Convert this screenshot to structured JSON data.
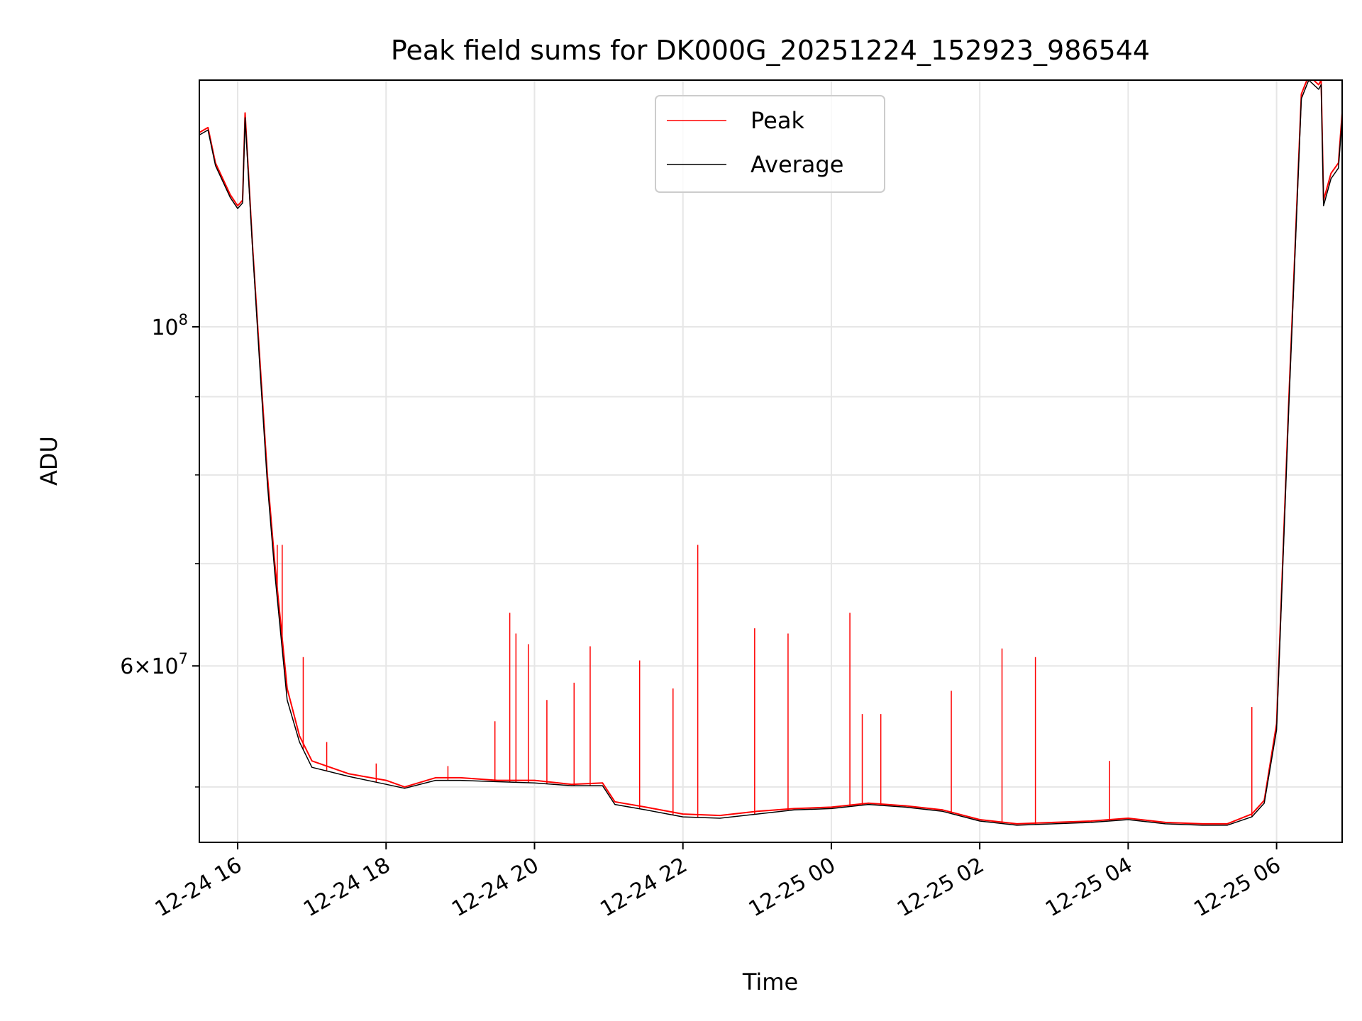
{
  "chart_data": {
    "type": "line",
    "title": "Peak field sums for DK000G_20251224_152923_986544",
    "xlabel": "Time",
    "ylabel": "ADU",
    "x_scale": "time",
    "y_scale": "log",
    "xlim": [
      "2025-12-24 15:29",
      "2025-12-25 06:53"
    ],
    "ylim": [
      46000000,
      145000000
    ],
    "grid": true,
    "legend_position": "upper center",
    "x_ticks": [
      {
        "value": "2025-12-24 16:00",
        "label": "12-24 16"
      },
      {
        "value": "2025-12-24 18:00",
        "label": "12-24 18"
      },
      {
        "value": "2025-12-24 20:00",
        "label": "12-24 20"
      },
      {
        "value": "2025-12-24 22:00",
        "label": "12-24 22"
      },
      {
        "value": "2025-12-25 00:00",
        "label": "12-25 00"
      },
      {
        "value": "2025-12-25 02:00",
        "label": "12-25 02"
      },
      {
        "value": "2025-12-25 04:00",
        "label": "12-25 04"
      },
      {
        "value": "2025-12-25 06:00",
        "label": "12-25 06"
      }
    ],
    "y_ticks_major": [
      {
        "value": 100000000,
        "base": "10",
        "exp": "8",
        "mant": ""
      },
      {
        "value": 60000000,
        "base": "10",
        "exp": "7",
        "mant": "6×"
      }
    ],
    "y_ticks_minor": [
      50000000,
      70000000,
      80000000,
      90000000
    ],
    "series": [
      {
        "name": "Peak",
        "color": "#ff0000",
        "x": [
          "2025-12-24 15:29",
          "2025-12-24 15:36",
          "2025-12-24 15:42",
          "2025-12-24 15:54",
          "2025-12-24 16:00",
          "2025-12-24 16:04",
          "2025-12-24 16:06",
          "2025-12-24 16:12",
          "2025-12-24 16:18",
          "2025-12-24 16:24",
          "2025-12-24 16:30",
          "2025-12-24 16:40",
          "2025-12-24 16:50",
          "2025-12-24 17:00",
          "2025-12-24 17:30",
          "2025-12-24 18:00",
          "2025-12-24 18:15",
          "2025-12-24 18:40",
          "2025-12-24 19:00",
          "2025-12-24 19:30",
          "2025-12-24 20:00",
          "2025-12-24 20:30",
          "2025-12-24 20:55",
          "2025-12-24 21:05",
          "2025-12-24 21:30",
          "2025-12-24 22:00",
          "2025-12-24 22:30",
          "2025-12-24 23:00",
          "2025-12-24 23:30",
          "2025-12-25 00:00",
          "2025-12-25 00:30",
          "2025-12-25 01:00",
          "2025-12-25 01:30",
          "2025-12-25 02:00",
          "2025-12-25 02:30",
          "2025-12-25 03:00",
          "2025-12-25 03:30",
          "2025-12-25 04:00",
          "2025-12-25 04:30",
          "2025-12-25 05:00",
          "2025-12-25 05:20",
          "2025-12-25 05:40",
          "2025-12-25 05:50",
          "2025-12-25 06:00",
          "2025-12-25 06:10",
          "2025-12-25 06:20",
          "2025-12-25 06:26",
          "2025-12-25 06:34",
          "2025-12-25 06:36",
          "2025-12-25 06:38",
          "2025-12-25 06:44",
          "2025-12-25 06:50",
          "2025-12-25 06:53"
        ],
        "y": [
          134000000,
          135000000,
          128000000,
          122000000,
          120000000,
          121000000,
          138000000,
          113000000,
          95000000,
          80000000,
          70000000,
          58000000,
          54000000,
          52000000,
          51000000,
          50500000,
          50000000,
          50700000,
          50700000,
          50500000,
          50500000,
          50200000,
          50300000,
          48900000,
          48500000,
          48000000,
          47900000,
          48200000,
          48400000,
          48500000,
          48800000,
          48600000,
          48300000,
          47600000,
          47300000,
          47400000,
          47500000,
          47700000,
          47400000,
          47300000,
          47300000,
          48000000,
          49000000,
          55000000,
          90000000,
          142000000,
          146000000,
          144000000,
          145000000,
          121000000,
          126000000,
          128000000,
          138000000
        ]
      },
      {
        "name": "Average",
        "color": "#000000",
        "x": [
          "2025-12-24 15:29",
          "2025-12-24 15:36",
          "2025-12-24 15:42",
          "2025-12-24 15:54",
          "2025-12-24 16:00",
          "2025-12-24 16:04",
          "2025-12-24 16:06",
          "2025-12-24 16:12",
          "2025-12-24 16:18",
          "2025-12-24 16:24",
          "2025-12-24 16:30",
          "2025-12-24 16:40",
          "2025-12-24 16:50",
          "2025-12-24 17:00",
          "2025-12-24 17:30",
          "2025-12-24 18:00",
          "2025-12-24 18:15",
          "2025-12-24 18:40",
          "2025-12-24 19:00",
          "2025-12-24 19:30",
          "2025-12-24 20:00",
          "2025-12-24 20:30",
          "2025-12-24 20:55",
          "2025-12-24 21:05",
          "2025-12-24 21:30",
          "2025-12-24 22:00",
          "2025-12-24 22:30",
          "2025-12-24 23:00",
          "2025-12-24 23:30",
          "2025-12-25 00:00",
          "2025-12-25 00:30",
          "2025-12-25 01:00",
          "2025-12-25 01:30",
          "2025-12-25 02:00",
          "2025-12-25 02:30",
          "2025-12-25 03:00",
          "2025-12-25 03:30",
          "2025-12-25 04:00",
          "2025-12-25 04:30",
          "2025-12-25 05:00",
          "2025-12-25 05:20",
          "2025-12-25 05:40",
          "2025-12-25 05:50",
          "2025-12-25 06:00",
          "2025-12-25 06:10",
          "2025-12-25 06:20",
          "2025-12-25 06:26",
          "2025-12-25 06:34",
          "2025-12-25 06:36",
          "2025-12-25 06:38",
          "2025-12-25 06:44",
          "2025-12-25 06:50",
          "2025-12-25 06:53"
        ],
        "y": [
          133500000,
          134500000,
          127500000,
          121500000,
          119500000,
          120500000,
          137000000,
          112500000,
          94000000,
          79000000,
          69000000,
          57000000,
          53500000,
          51500000,
          50800000,
          50200000,
          49900000,
          50500000,
          50500000,
          50400000,
          50300000,
          50100000,
          50100000,
          48700000,
          48300000,
          47800000,
          47700000,
          48000000,
          48300000,
          48400000,
          48700000,
          48500000,
          48200000,
          47500000,
          47200000,
          47300000,
          47400000,
          47600000,
          47300000,
          47200000,
          47200000,
          47800000,
          48800000,
          54500000,
          89000000,
          141000000,
          145000000,
          143000000,
          144000000,
          120000000,
          125000000,
          127000000,
          137000000
        ]
      }
    ],
    "peak_spikes": [
      {
        "x": "2025-12-24 16:32",
        "y": 72000000
      },
      {
        "x": "2025-12-24 16:36",
        "y": 72000000
      },
      {
        "x": "2025-12-24 16:53",
        "y": 60800000
      },
      {
        "x": "2025-12-24 17:12",
        "y": 53500000
      },
      {
        "x": "2025-12-24 17:52",
        "y": 51800000
      },
      {
        "x": "2025-12-24 18:50",
        "y": 51600000
      },
      {
        "x": "2025-12-24 19:28",
        "y": 55200000
      },
      {
        "x": "2025-12-24 19:40",
        "y": 65000000
      },
      {
        "x": "2025-12-24 19:45",
        "y": 63000000
      },
      {
        "x": "2025-12-24 19:55",
        "y": 62000000
      },
      {
        "x": "2025-12-24 20:10",
        "y": 57000000
      },
      {
        "x": "2025-12-24 20:32",
        "y": 58500000
      },
      {
        "x": "2025-12-24 20:45",
        "y": 61800000
      },
      {
        "x": "2025-12-24 21:25",
        "y": 60500000
      },
      {
        "x": "2025-12-24 21:52",
        "y": 58000000
      },
      {
        "x": "2025-12-24 22:12",
        "y": 72000000
      },
      {
        "x": "2025-12-24 22:58",
        "y": 63500000
      },
      {
        "x": "2025-12-24 23:25",
        "y": 63000000
      },
      {
        "x": "2025-12-25 00:15",
        "y": 65000000
      },
      {
        "x": "2025-12-25 00:25",
        "y": 55800000
      },
      {
        "x": "2025-12-25 00:40",
        "y": 55800000
      },
      {
        "x": "2025-12-25 01:37",
        "y": 57800000
      },
      {
        "x": "2025-12-25 02:18",
        "y": 61600000
      },
      {
        "x": "2025-12-25 02:45",
        "y": 60800000
      },
      {
        "x": "2025-12-25 03:45",
        "y": 52000000
      },
      {
        "x": "2025-12-25 05:40",
        "y": 56400000
      }
    ]
  }
}
